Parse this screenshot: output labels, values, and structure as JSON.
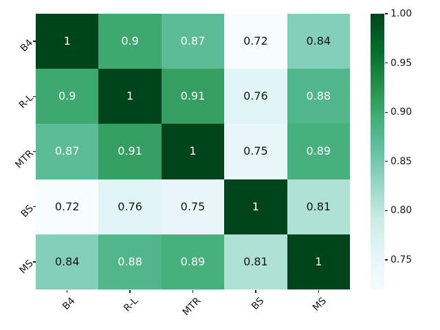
{
  "figure": {
    "background": "#ffffff",
    "tick_color": "#151515"
  },
  "chart_data": {
    "type": "heatmap",
    "title": "",
    "xlabel": "",
    "ylabel": "",
    "categories": [
      "B4",
      "R-L",
      "MTR",
      "BS",
      "MS"
    ],
    "matrix": [
      [
        1,
        0.9,
        0.87,
        0.72,
        0.84
      ],
      [
        0.9,
        1,
        0.91,
        0.76,
        0.88
      ],
      [
        0.87,
        0.91,
        1,
        0.75,
        0.89
      ],
      [
        0.72,
        0.76,
        0.75,
        1,
        0.81
      ],
      [
        0.84,
        0.88,
        0.89,
        0.81,
        1
      ]
    ],
    "annotations": [
      [
        "1",
        "0.9",
        "0.87",
        "0.72",
        "0.84"
      ],
      [
        "0.9",
        "1",
        "0.91",
        "0.76",
        "0.88"
      ],
      [
        "0.87",
        "0.91",
        "1",
        "0.75",
        "0.89"
      ],
      [
        "0.72",
        "0.76",
        "0.75",
        "1",
        "0.81"
      ],
      [
        "0.84",
        "0.88",
        "0.89",
        "0.81",
        "1"
      ]
    ],
    "colormap": "BuGn",
    "vmin": 0.72,
    "vmax": 1.0,
    "grid": false,
    "legend_position": "right-colorbar",
    "value_colors": {
      "1": "#00441b",
      "0.91": "#349f61",
      "0.9": "#3da96f",
      "0.89": "#46b17d",
      "0.88": "#51b78a",
      "0.87": "#5bbc97",
      "0.84": "#83cfb9",
      "0.81": "#afe1d5",
      "0.76": "#e1f4f6",
      "0.75": "#e8f6fa",
      "0.72": "#f7fcfd"
    },
    "white_text_min": 0.87,
    "annotation_text_colors": {
      "light": "#ffffff",
      "dark": "#151515"
    },
    "colorbar": {
      "ticks": [
        {
          "label": "1.00",
          "value": 1.0
        },
        {
          "label": "0.95",
          "value": 0.95
        },
        {
          "label": "0.90",
          "value": 0.9
        },
        {
          "label": "0.85",
          "value": 0.85
        },
        {
          "label": "0.80",
          "value": 0.8
        },
        {
          "label": "0.75",
          "value": 0.75
        }
      ],
      "gradient_stops": [
        {
          "color": "#00441b",
          "pos": 0
        },
        {
          "color": "#006d2c",
          "pos": 12.5
        },
        {
          "color": "#238b45",
          "pos": 25
        },
        {
          "color": "#41ae76",
          "pos": 37.5
        },
        {
          "color": "#66c2a4",
          "pos": 50
        },
        {
          "color": "#99d8c9",
          "pos": 62.5
        },
        {
          "color": "#ccece6",
          "pos": 75
        },
        {
          "color": "#e5f5f9",
          "pos": 87.5
        },
        {
          "color": "#f7fcfd",
          "pos": 100
        }
      ]
    }
  }
}
